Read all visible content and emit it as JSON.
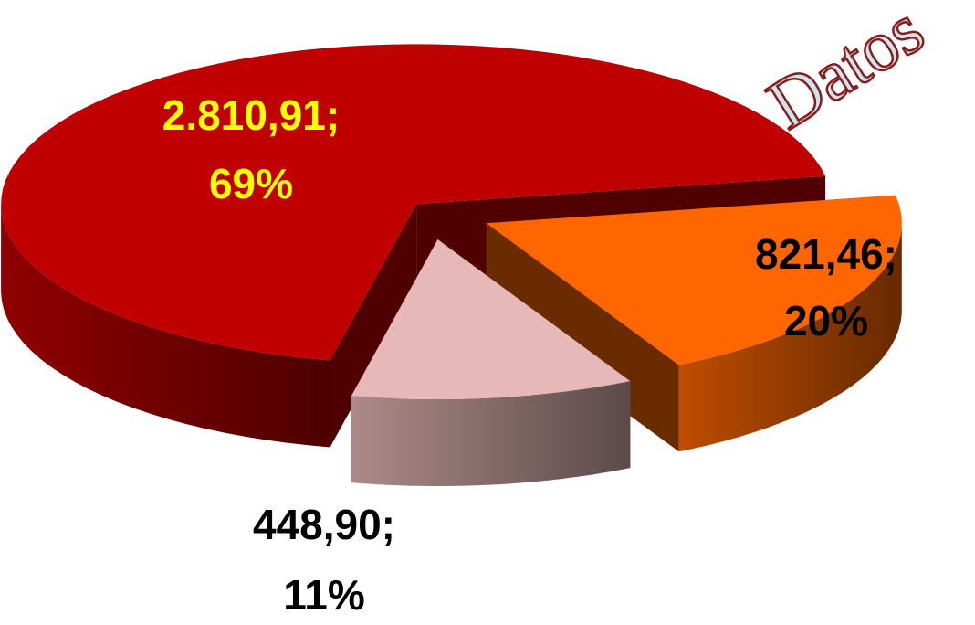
{
  "chart_data": {
    "type": "pie3d",
    "annotation": "Datos",
    "categories": [
      null,
      null,
      null
    ],
    "values": [
      2810.91,
      821.46,
      448.9
    ],
    "value_labels": [
      "2.810,91;",
      "821,46;",
      "448,90;"
    ],
    "percents": [
      69,
      20,
      11
    ],
    "percent_labels": [
      "69%",
      "20%",
      "11%"
    ],
    "colors": [
      "#c00000",
      "#ff6600",
      "#e6b8b7"
    ],
    "label_colors": [
      "#ffff00",
      "#000000",
      "#000000"
    ]
  }
}
